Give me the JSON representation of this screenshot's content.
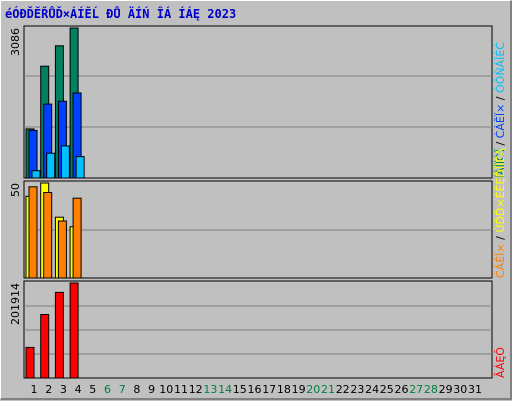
{
  "chart_data": {
    "type": "bar",
    "title": "éÓĐĎĚŘŮĎ×ÁÍĚĹ ĐŮ ÄÍŃ ÎÁ ÍÁĘ 2023",
    "x_days": [
      "1",
      "2",
      "3",
      "4",
      "5",
      "6",
      "7",
      "8",
      "9",
      "10",
      "11",
      "12",
      "13",
      "14",
      "15",
      "16",
      "17",
      "18",
      "19",
      "20",
      "21",
      "22",
      "23",
      "24",
      "25",
      "26",
      "27",
      "28",
      "29",
      "30",
      "31"
    ],
    "weekend_days": [
      "6",
      "7",
      "13",
      "14",
      "20",
      "21",
      "27",
      "28"
    ],
    "colors": {
      "weekday_label": "#000000",
      "weekend_label": "#008040",
      "visits": "#008060",
      "pages": "#0040ff",
      "hits": "#00c0ff",
      "hosts": "#ffff00",
      "unique": "#ff8000",
      "traffic": "#ff0000",
      "title": "#0000cc"
    },
    "panels": [
      {
        "id": "top",
        "max_label": "3086",
        "ymax": 3086,
        "legend_parts": [
          {
            "text": "ĺÁÍÏÓÎ",
            "color": "#008060"
          },
          {
            "text": " / ",
            "color": "#000000"
          },
          {
            "text": "ĆÁĚÏ×",
            "color": "#0040ff"
          },
          {
            "text": " / ",
            "color": "#000000"
          },
          {
            "text": "ÓÔŇÁÎÉĆ",
            "color": "#00c0ff"
          }
        ],
        "series": [
          {
            "name": "ĺÁÍÏÓÎ",
            "color_key": "visits",
            "values": [
              1010,
              2300,
              2720,
              3086
            ]
          },
          {
            "name": "ĆÁĚÏ×",
            "color_key": "pages",
            "values": [
              980,
              1520,
              1580,
              1750
            ]
          },
          {
            "name": "ÓÔŇÁÎÉĆ",
            "color_key": "hits",
            "values": [
              150,
              510,
              660,
              440
            ]
          }
        ]
      },
      {
        "id": "middle",
        "max_label": "50",
        "ymax": 50,
        "legend_parts": [
          {
            "text": "ĆÁĚÏ×",
            "color": "#ff8000"
          },
          {
            "text": " / ",
            "color": "#000000"
          },
          {
            "text": "ÚĎĎ×ÉĚĘĎÎÍÉĄ",
            "color": "#ffff00"
          }
        ],
        "series": [
          {
            "name": "ÚĎĎ×ÉĚĘĎÎÍÉĄ",
            "color_key": "hosts",
            "values": [
              43,
              50,
              32,
              27
            ]
          },
          {
            "name": "ĆÁĚÏ×",
            "color_key": "unique",
            "values": [
              48,
              45,
              30,
              42
            ]
          }
        ]
      },
      {
        "id": "bottom",
        "max_label": "201914",
        "ymax": 201914,
        "legend_parts": [
          {
            "text": "ÂÁĘÔ",
            "color": "#ff0000"
          }
        ],
        "series": [
          {
            "name": "ÂÁĘÔ",
            "color_key": "traffic",
            "values": [
              65000,
              135000,
              182000,
              201914
            ]
          }
        ]
      }
    ]
  }
}
